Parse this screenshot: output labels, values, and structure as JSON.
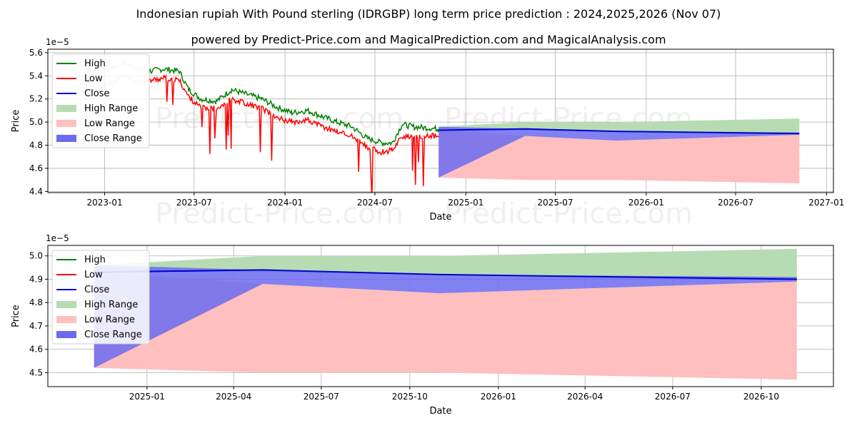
{
  "title": "Indonesian rupiah With Pound sterling (IDRGBP) long term price prediction : 2024,2025,2026 (Nov 07)",
  "subtitle": "powered by Predict-Price.com and MagicalPrediction.com and MagicalAnalysis.com",
  "watermark": "Predict-Price.com",
  "colors": {
    "high": "#008000",
    "low": "#ff0000",
    "close": "#0000cc",
    "high_range": "#b7dcb4",
    "low_range": "#ffbfbf",
    "close_range": "#6b6bf0"
  },
  "chart_data": [
    {
      "type": "line",
      "id": "overview",
      "ylabel": "Price",
      "xlabel": "Date",
      "exponent_label": "1e−5",
      "ylim": [
        4.39,
        5.63
      ],
      "xlim": [
        "2022-09-08",
        "2027-01-15"
      ],
      "yticks": [
        "4.4",
        "4.6",
        "4.8",
        "5.0",
        "5.2",
        "5.4",
        "5.6"
      ],
      "xticks": [
        "2023-01",
        "2023-07",
        "2024-01",
        "2024-07",
        "2025-01",
        "2025-07",
        "2026-01",
        "2026-07",
        "2027-01"
      ],
      "legend": [
        "High",
        "Low",
        "Close",
        "High Range",
        "Low Range",
        "Close Range"
      ],
      "legend_position": "top-left",
      "history": {
        "dates": [
          "2022-11-15",
          "2022-12-10",
          "2023-01-15",
          "2023-02-10",
          "2023-03-10",
          "2023-04-01",
          "2023-05-01",
          "2023-06-01",
          "2023-06-20",
          "2023-07-15",
          "2023-08-15",
          "2023-09-15",
          "2023-10-15",
          "2023-11-15",
          "2023-12-15",
          "2024-01-15",
          "2024-02-15",
          "2024-03-15",
          "2024-04-15",
          "2024-05-15",
          "2024-06-15",
          "2024-07-15",
          "2024-08-05",
          "2024-08-25",
          "2024-09-15",
          "2024-10-15",
          "2024-11-07"
        ],
        "high": [
          5.5,
          5.42,
          5.46,
          5.52,
          5.46,
          5.44,
          5.46,
          5.44,
          5.28,
          5.2,
          5.18,
          5.28,
          5.24,
          5.2,
          5.13,
          5.08,
          5.1,
          5.05,
          5.0,
          4.96,
          4.86,
          4.82,
          4.82,
          4.98,
          4.96,
          4.95,
          4.94
        ],
        "low": [
          5.36,
          5.28,
          5.34,
          5.4,
          5.34,
          5.36,
          5.38,
          5.36,
          5.22,
          5.12,
          5.12,
          5.2,
          5.16,
          5.12,
          5.04,
          5.0,
          5.02,
          4.96,
          4.92,
          4.88,
          4.78,
          4.74,
          4.76,
          4.88,
          4.86,
          4.88,
          4.88
        ]
      },
      "prediction": {
        "dates": [
          "2024-11-07",
          "2025-05-01",
          "2025-11-01",
          "2026-11-07"
        ],
        "high_range_upper": [
          4.96,
          5.0,
          5.0,
          5.03
        ],
        "high_range_lower": [
          4.93,
          4.93,
          4.92,
          4.9
        ],
        "low_range_upper": [
          4.93,
          4.88,
          4.84,
          4.89
        ],
        "low_range_lower": [
          4.52,
          4.5,
          4.5,
          4.47
        ],
        "close_range_upper": [
          4.96,
          4.94,
          4.92,
          4.91
        ],
        "close_range_lower": [
          4.52,
          4.88,
          4.84,
          4.89
        ],
        "close": [
          4.93,
          4.94,
          4.92,
          4.9
        ]
      }
    },
    {
      "type": "line",
      "id": "zoom",
      "ylabel": "Price",
      "xlabel": "Date",
      "exponent_label": "1e−5",
      "ylim": [
        4.44,
        5.045
      ],
      "xlim": [
        "2024-09-20",
        "2026-12-15"
      ],
      "yticks": [
        "4.5",
        "4.6",
        "4.7",
        "4.8",
        "4.9",
        "5.0"
      ],
      "xticks": [
        "2025-01",
        "2025-04",
        "2025-07",
        "2025-10",
        "2026-01",
        "2026-04",
        "2026-07",
        "2026-10"
      ],
      "legend": [
        "High",
        "Low",
        "Close",
        "High Range",
        "Low Range",
        "Close Range"
      ],
      "legend_position": "top-left",
      "prediction": {
        "dates": [
          "2024-11-07",
          "2025-05-01",
          "2025-11-01",
          "2026-11-07"
        ],
        "high_range_upper": [
          4.96,
          5.0,
          5.0,
          5.03
        ],
        "high_range_lower": [
          4.93,
          4.93,
          4.92,
          4.9
        ],
        "low_range_upper": [
          4.93,
          4.88,
          4.84,
          4.89
        ],
        "low_range_lower": [
          4.52,
          4.5,
          4.5,
          4.47
        ],
        "close_range_upper": [
          4.96,
          4.94,
          4.92,
          4.91
        ],
        "close_range_lower": [
          4.52,
          4.88,
          4.84,
          4.89
        ],
        "close": [
          4.93,
          4.94,
          4.92,
          4.9
        ]
      }
    }
  ]
}
